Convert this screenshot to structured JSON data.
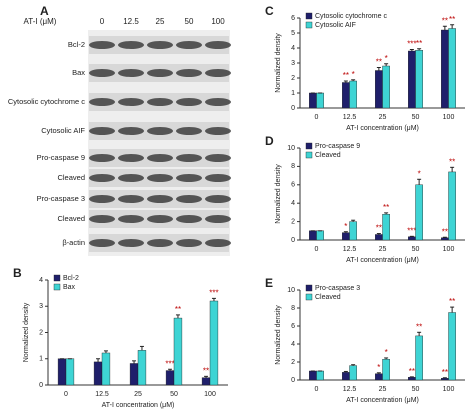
{
  "blot": {
    "panel_label": "A",
    "header_label": "AT-I (μM)",
    "doses": [
      "0",
      "12.5",
      "25",
      "50",
      "100"
    ],
    "rows": [
      "Bcl-2",
      "Bax",
      "Cytosolic cytochrome c",
      "Cytosolic AIF",
      "Pro-caspase 9",
      "Cleaved",
      "Pro-caspase 3",
      "Cleaved",
      "β-actin"
    ]
  },
  "chart_data": [
    {
      "type": "bar",
      "panel_label": "B",
      "categories": [
        "0",
        "12.5",
        "25",
        "50",
        "100"
      ],
      "xlabel": "AT-I concentration (μM)",
      "ylabel": "Normalized density",
      "ylim": [
        0,
        4
      ],
      "yticks": [
        0,
        1,
        2,
        3,
        4
      ],
      "legend": "upper left",
      "series": [
        {
          "name": "Bcl-2",
          "color": "#1f1f6b",
          "values": [
            1,
            0.88,
            0.82,
            0.55,
            0.28
          ],
          "errors": [
            0,
            0.12,
            0.1,
            0.05,
            0.05
          ],
          "annotations": [
            null,
            null,
            null,
            "***",
            "**"
          ]
        },
        {
          "name": "Bax",
          "color": "#3ed4d4",
          "values": [
            1,
            1.22,
            1.32,
            2.55,
            3.2
          ],
          "errors": [
            0,
            0.08,
            0.15,
            0.12,
            0.1
          ],
          "annotations": [
            null,
            null,
            null,
            "**",
            "***"
          ]
        }
      ]
    },
    {
      "type": "bar",
      "panel_label": "C",
      "categories": [
        "0",
        "12.5",
        "25",
        "50",
        "100"
      ],
      "xlabel": "AT-I concentration (μM)",
      "ylabel": "Normalized density",
      "ylim": [
        0,
        6
      ],
      "yticks": [
        0,
        1,
        2,
        3,
        4,
        5,
        6
      ],
      "legend": "upper left",
      "series": [
        {
          "name": "Cytosolic cytochrome c",
          "color": "#1f1f6b",
          "values": [
            1,
            1.7,
            2.5,
            3.8,
            5.2
          ],
          "errors": [
            0,
            0.1,
            0.2,
            0.1,
            0.25
          ],
          "annotations": [
            null,
            "**",
            "**",
            "***",
            "**"
          ]
        },
        {
          "name": "Cytosolic AIF",
          "color": "#3ed4d4",
          "values": [
            1,
            1.8,
            2.8,
            3.85,
            5.3
          ],
          "errors": [
            0,
            0.08,
            0.15,
            0.1,
            0.25
          ],
          "annotations": [
            null,
            "*",
            "*",
            "**",
            "**"
          ]
        }
      ]
    },
    {
      "type": "bar",
      "panel_label": "D",
      "categories": [
        "0",
        "12.5",
        "25",
        "50",
        "100"
      ],
      "xlabel": "AT-I concentration (μM)",
      "ylabel": "Normalized density",
      "ylim": [
        0,
        10
      ],
      "yticks": [
        0,
        2,
        4,
        6,
        8,
        10
      ],
      "legend": "upper left",
      "series": [
        {
          "name": "Pro-caspase 9",
          "color": "#1f1f6b",
          "values": [
            1,
            0.8,
            0.6,
            0.35,
            0.25
          ],
          "errors": [
            0,
            0.1,
            0.1,
            0.05,
            0.05
          ],
          "annotations": [
            null,
            "*",
            "**",
            "***",
            "**"
          ]
        },
        {
          "name": "Cleaved",
          "color": "#3ed4d4",
          "values": [
            1,
            2,
            2.8,
            6,
            7.4
          ],
          "errors": [
            0,
            0.15,
            0.15,
            0.6,
            0.5
          ],
          "annotations": [
            null,
            null,
            "**",
            "*",
            "**"
          ]
        }
      ]
    },
    {
      "type": "bar",
      "panel_label": "E",
      "categories": [
        "0",
        "12.5",
        "25",
        "50",
        "100"
      ],
      "xlabel": "AT-I concentration (μM)",
      "ylabel": "Normalized density",
      "ylim": [
        0,
        10
      ],
      "yticks": [
        0,
        2,
        4,
        6,
        8,
        10
      ],
      "legend": "upper left",
      "series": [
        {
          "name": "Pro-caspase 3",
          "color": "#1f1f6b",
          "values": [
            1,
            0.85,
            0.7,
            0.3,
            0.2
          ],
          "errors": [
            0,
            0.1,
            0.1,
            0.05,
            0.05
          ],
          "annotations": [
            null,
            null,
            "*",
            "**",
            "**"
          ]
        },
        {
          "name": "Cleaved",
          "color": "#3ed4d4",
          "values": [
            1,
            1.6,
            2.3,
            4.9,
            7.5
          ],
          "errors": [
            0,
            0.1,
            0.15,
            0.4,
            0.6
          ],
          "annotations": [
            null,
            null,
            "*",
            "**",
            "**"
          ]
        }
      ]
    }
  ]
}
